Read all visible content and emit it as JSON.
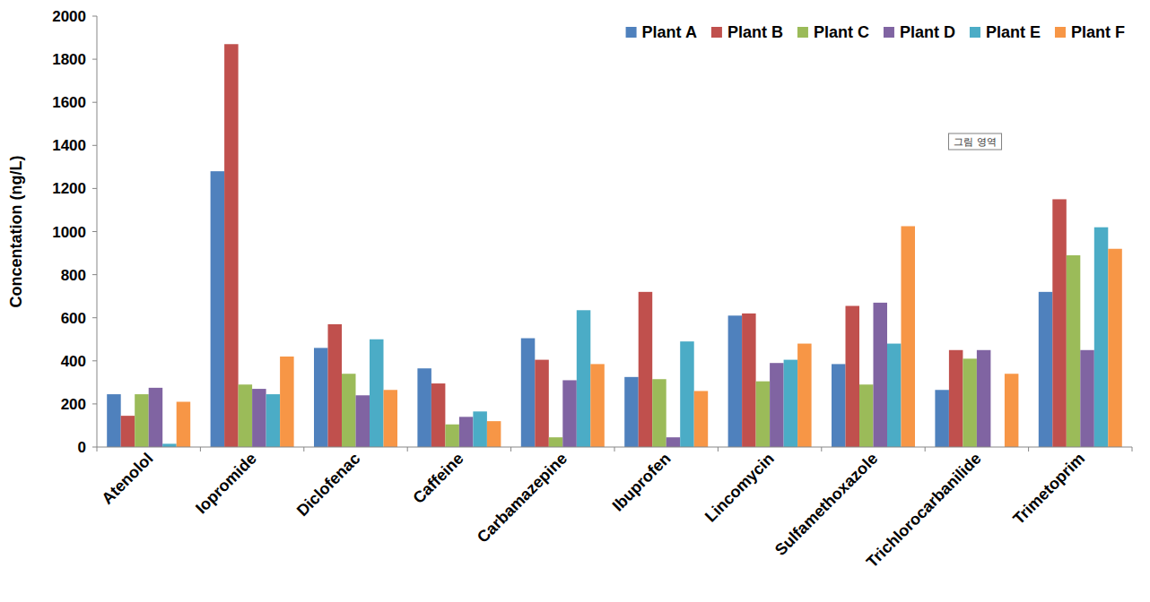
{
  "chart_data": {
    "type": "bar",
    "y_label": "Concentation (ng/L)",
    "annotation": "그림 영역",
    "categories": [
      "Atenolol",
      "Iopromide",
      "Diclofenac",
      "Caffeine",
      "Carbamazepine",
      "Ibuprofen",
      "Lincomycin",
      "Sulfamethoxazole",
      "Trichlorocarbanilide",
      "Trimetoprim"
    ],
    "series": [
      {
        "name": "Plant A",
        "color": "#4f81bd",
        "values": [
          245,
          1280,
          460,
          365,
          505,
          325,
          610,
          385,
          265,
          720
        ]
      },
      {
        "name": "Plant B",
        "color": "#c0504d",
        "values": [
          145,
          1870,
          570,
          295,
          405,
          720,
          620,
          655,
          450,
          1150
        ]
      },
      {
        "name": "Plant C",
        "color": "#9bbb59",
        "values": [
          245,
          290,
          340,
          105,
          45,
          315,
          305,
          290,
          410,
          890
        ]
      },
      {
        "name": "Plant D",
        "color": "#8064a2",
        "values": [
          275,
          270,
          240,
          140,
          310,
          45,
          390,
          670,
          450,
          450
        ]
      },
      {
        "name": "Plant E",
        "color": "#4bacc6",
        "values": [
          15,
          245,
          500,
          165,
          635,
          490,
          405,
          480,
          null,
          1020
        ]
      },
      {
        "name": "Plant F",
        "color": "#f79646",
        "values": [
          210,
          420,
          265,
          120,
          385,
          260,
          480,
          1025,
          340,
          920
        ]
      }
    ],
    "ylim": [
      0,
      2000
    ],
    "yticks": [
      0,
      200,
      400,
      600,
      800,
      1000,
      1200,
      1400,
      1600,
      1800,
      2000
    ],
    "grid": false,
    "legend": "top-right"
  }
}
